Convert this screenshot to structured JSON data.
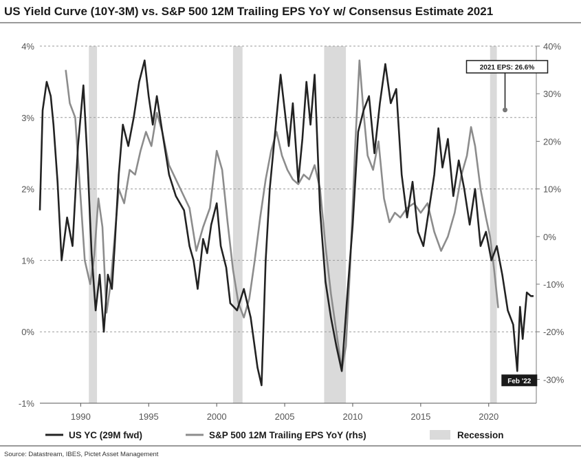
{
  "chart_data": {
    "type": "line",
    "title": "US Yield Curve (10Y-3M) vs. S&P 500 12M Trailing EPS YoY w/ Consensus Estimate 2021",
    "x_ticks": [
      "1990",
      "1995",
      "2000",
      "2005",
      "2010",
      "2015",
      "2020"
    ],
    "xlim": [
      1987.0,
      2023.5
    ],
    "left_axis": {
      "ticks": [
        "-1%",
        "0%",
        "1%",
        "2%",
        "3%",
        "4%"
      ],
      "ylim": [
        -1,
        4
      ]
    },
    "right_axis": {
      "ticks": [
        "-30%",
        "-20%",
        "-10%",
        "0%",
        "10%",
        "20%",
        "30%",
        "40%"
      ],
      "ylim": [
        -35,
        40
      ]
    },
    "recessions": [
      {
        "start": 1990.6,
        "end": 1991.2
      },
      {
        "start": 2001.2,
        "end": 2001.9
      },
      {
        "start": 2007.9,
        "end": 2009.5
      },
      {
        "start": 2020.1,
        "end": 2020.6
      }
    ],
    "series": [
      {
        "name": "US YC (29M fwd)",
        "axis": "left",
        "color": "#222222",
        "x": [
          1987.0,
          1987.2,
          1987.5,
          1987.8,
          1988.0,
          1988.3,
          1988.6,
          1989.0,
          1989.4,
          1989.8,
          1990.2,
          1990.5,
          1990.8,
          1991.1,
          1991.4,
          1991.7,
          1992.0,
          1992.3,
          1992.5,
          1992.8,
          1993.1,
          1993.5,
          1993.9,
          1994.3,
          1994.7,
          1995.0,
          1995.3,
          1995.6,
          1996.0,
          1996.5,
          1997.0,
          1997.6,
          1998.0,
          1998.3,
          1998.6,
          1999.0,
          1999.3,
          1999.6,
          2000.0,
          2000.3,
          2000.7,
          2001.0,
          2001.5,
          2002.0,
          2002.5,
          2003.0,
          2003.3,
          2003.6,
          2003.9,
          2004.3,
          2004.7,
          2005.0,
          2005.3,
          2005.6,
          2006.0,
          2006.3,
          2006.6,
          2006.9,
          2007.2,
          2007.6,
          2008.0,
          2008.4,
          2008.8,
          2009.2,
          2009.6,
          2010.0,
          2010.4,
          2010.8,
          2011.2,
          2011.6,
          2012.0,
          2012.4,
          2012.8,
          2013.2,
          2013.6,
          2014.0,
          2014.4,
          2014.8,
          2015.2,
          2015.6,
          2016.0,
          2016.3,
          2016.6,
          2017.0,
          2017.4,
          2017.8,
          2018.2,
          2018.6,
          2019.0,
          2019.4,
          2019.8,
          2020.2,
          2020.6,
          2021.0,
          2021.4,
          2021.8,
          2022.1,
          2022.3,
          2022.5,
          2022.8,
          2023.1,
          2023.3
        ],
        "values": [
          1.7,
          3.1,
          3.5,
          3.3,
          2.9,
          2.1,
          1.0,
          1.6,
          1.2,
          2.6,
          3.45,
          2.4,
          1.1,
          0.3,
          0.8,
          0.0,
          0.8,
          0.6,
          1.2,
          2.2,
          2.9,
          2.6,
          3.0,
          3.5,
          3.8,
          3.3,
          2.9,
          3.3,
          2.8,
          2.2,
          1.9,
          1.7,
          1.2,
          1.0,
          0.6,
          1.3,
          1.1,
          1.5,
          1.8,
          1.2,
          0.9,
          0.4,
          0.3,
          0.6,
          0.2,
          -0.5,
          -0.75,
          1.0,
          2.0,
          2.8,
          3.6,
          3.1,
          2.6,
          3.2,
          2.1,
          2.7,
          3.5,
          2.9,
          3.6,
          1.7,
          0.7,
          0.2,
          -0.2,
          -0.55,
          0.5,
          1.5,
          2.8,
          3.1,
          3.3,
          2.5,
          3.2,
          3.75,
          3.2,
          3.4,
          2.2,
          1.6,
          2.1,
          1.4,
          1.2,
          1.7,
          2.2,
          2.85,
          2.3,
          2.7,
          1.9,
          2.4,
          2.0,
          1.5,
          2.0,
          1.2,
          1.4,
          1.0,
          1.2,
          0.8,
          0.3,
          0.1,
          -0.55,
          0.35,
          -0.1,
          0.55,
          0.5,
          0.5
        ]
      },
      {
        "name": "S&P 500 12M Trailing EPS YoY (rhs)",
        "axis": "right",
        "color": "#8c8c8c",
        "x": [
          1988.9,
          1989.2,
          1989.6,
          1990.0,
          1990.3,
          1990.7,
          1991.0,
          1991.3,
          1991.6,
          1991.9,
          1992.2,
          1992.5,
          1992.8,
          1993.2,
          1993.6,
          1994.0,
          1994.4,
          1994.8,
          1995.2,
          1995.6,
          1996.0,
          1996.5,
          1997.0,
          1997.5,
          1998.0,
          1998.5,
          1999.0,
          1999.5,
          2000.0,
          2000.4,
          2000.8,
          2001.2,
          2001.6,
          2002.0,
          2002.4,
          2002.8,
          2003.2,
          2003.6,
          2004.0,
          2004.4,
          2004.8,
          2005.2,
          2005.6,
          2006.0,
          2006.4,
          2006.8,
          2007.2,
          2007.6,
          2008.0,
          2008.4,
          2008.8,
          2009.2,
          2009.5,
          2009.8,
          2010.2,
          2010.5,
          2010.8,
          2011.1,
          2011.5,
          2011.9,
          2012.3,
          2012.7,
          2013.1,
          2013.5,
          2014.0,
          2014.5,
          2015.0,
          2015.5,
          2016.0,
          2016.5,
          2017.0,
          2017.5,
          2018.0,
          2018.4,
          2018.7,
          2019.0,
          2019.4,
          2019.8,
          2020.1,
          2020.4,
          2020.7
        ],
        "values": [
          35.0,
          28.0,
          25.0,
          8.0,
          -5.0,
          -10.0,
          -4.0,
          8.0,
          2.0,
          -16.0,
          -10.0,
          0.0,
          10.0,
          7.0,
          14.0,
          13.0,
          18.0,
          22.0,
          19.0,
          26.0,
          22.0,
          15.0,
          12.0,
          9.0,
          6.0,
          -3.0,
          2.0,
          6.0,
          18.0,
          14.0,
          3.0,
          -7.0,
          -14.0,
          -17.0,
          -13.0,
          -5.0,
          4.0,
          12.0,
          18.0,
          22.0,
          17.0,
          14.0,
          12.0,
          11.0,
          13.0,
          12.0,
          15.0,
          10.0,
          -2.0,
          -12.0,
          -20.0,
          -28.0,
          -23.0,
          -7.0,
          20.0,
          37.0,
          26.0,
          17.0,
          14.0,
          20.0,
          8.0,
          3.0,
          5.0,
          4.0,
          6.0,
          7.0,
          5.0,
          7.0,
          1.0,
          -3.0,
          0.0,
          5.0,
          13.0,
          17.0,
          23.0,
          19.0,
          10.0,
          4.0,
          0.0,
          -7.0,
          -15.0
        ]
      }
    ],
    "annotations": [
      {
        "text": "2021 EPS: 26.6%",
        "x": 2021.2,
        "value": 26.6,
        "axis": "right"
      },
      {
        "text": "Feb '22",
        "x": 2022.1,
        "value": -0.55,
        "axis": "left"
      }
    ],
    "legend": {
      "yc": "US YC (29M fwd)",
      "eps": "S&P 500 12M Trailing EPS YoY (rhs)",
      "recession": "Recession"
    },
    "source": "Source: Datastream, IBES, Pictet Asset Management"
  },
  "colors": {
    "yc_line": "#222222",
    "eps_line": "#8c8c8c",
    "recession": "#dadada",
    "grid": "#9a9a9a",
    "annotation_box": "#1a1a1a"
  }
}
